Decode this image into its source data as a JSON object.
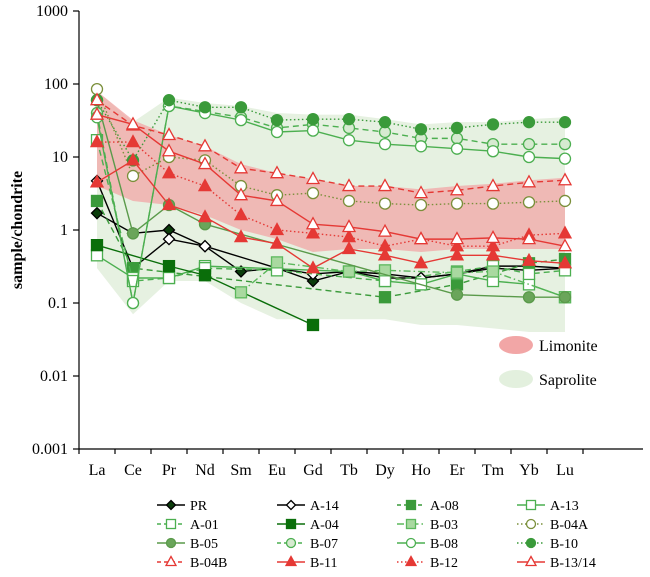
{
  "chart_data": {
    "type": "line",
    "title": "",
    "xlabel": "",
    "ylabel": "sample/chondrite",
    "yscale": "log",
    "ylim": [
      0.001,
      1000
    ],
    "yticks": [
      "0.001",
      "0.01",
      "0.1",
      "1",
      "10",
      "100",
      "1000"
    ],
    "ytick_values": [
      0.001,
      0.01,
      0.1,
      1,
      10,
      100,
      1000
    ],
    "categories": [
      "La",
      "Ce",
      "Pr",
      "Nd",
      "Sm",
      "Eu",
      "Gd",
      "Tb",
      "Dy",
      "Ho",
      "Er",
      "Tm",
      "Yb",
      "Lu"
    ],
    "grid": false,
    "legend_position": "bottom",
    "areas": [
      {
        "name": "Limonite",
        "color": "#f2a6a6",
        "upper": [
          80,
          32,
          20,
          14,
          8,
          6,
          5,
          4,
          4,
          3.6,
          4,
          4.3,
          4.8,
          5.2
        ],
        "lower": [
          4,
          2.5,
          2.2,
          1.6,
          1.0,
          0.75,
          0.5,
          0.55,
          0.55,
          0.5,
          0.55,
          0.55,
          0.55,
          0.55
        ]
      },
      {
        "name": "Saprolite",
        "color": "#e3f0de",
        "upper": [
          80,
          30,
          65,
          55,
          50,
          40,
          38,
          38,
          33,
          28,
          30,
          30,
          33,
          35
        ],
        "lower": [
          0.3,
          0.07,
          0.2,
          0.2,
          0.1,
          0.06,
          0.06,
          0.06,
          0.06,
          0.05,
          0.05,
          0.045,
          0.04,
          0.04
        ]
      }
    ],
    "series": [
      {
        "name": "PR",
        "color": "#000000",
        "dash": "solid",
        "marker": "diamond",
        "fill": "#0b3d0b",
        "values": [
          1.7,
          0.9,
          1.0,
          0.6,
          0.27,
          0.3,
          0.2,
          0.27,
          0.25,
          0.22,
          0.25,
          0.32,
          0.32,
          0.3
        ]
      },
      {
        "name": "A-14",
        "color": "#000000",
        "dash": "solid",
        "marker": "diamond",
        "fill": "none",
        "values": [
          4.7,
          0.3,
          0.75,
          0.6,
          null,
          0.3,
          0.25,
          0.27,
          0.22,
          0.22,
          0.25,
          0.3,
          0.28,
          0.3
        ]
      },
      {
        "name": "A-08",
        "color": "#3a9a3a",
        "dash": "dashed",
        "marker": "square",
        "fill": "#3a9a3a",
        "values": [
          2.5,
          0.3,
          null,
          null,
          null,
          null,
          null,
          null,
          0.12,
          null,
          0.18,
          null,
          0.35,
          0.4
        ]
      },
      {
        "name": "A-13",
        "color": "#4caf50",
        "dash": "solid",
        "marker": "square",
        "fill": "none",
        "values": [
          0.45,
          0.22,
          0.22,
          0.32,
          null,
          null,
          null,
          0.27,
          0.2,
          0.18,
          0.25,
          0.2,
          0.18,
          0.12
        ]
      },
      {
        "name": "A-01",
        "color": "#4caf50",
        "dash": "dashed",
        "marker": "square",
        "fill": "none",
        "values": [
          17,
          0.2,
          0.22,
          0.3,
          null,
          0.28,
          null,
          null,
          0.2,
          null,
          0.27,
          0.32,
          0.25,
          0.28
        ]
      },
      {
        "name": "A-04",
        "color": "#0a6e0a",
        "dash": "solid",
        "marker": "square",
        "fill": "#0a6e0a",
        "values": [
          0.62,
          null,
          0.32,
          0.24,
          null,
          null,
          0.05,
          null,
          null,
          null,
          null,
          null,
          null,
          null
        ]
      },
      {
        "name": "B-03",
        "color": "#5cb85c",
        "dash": "dashdot",
        "marker": "square",
        "fill": "#a9d9a0",
        "values": [
          null,
          null,
          null,
          null,
          0.14,
          0.36,
          null,
          0.27,
          0.28,
          null,
          0.26,
          0.27,
          null,
          0.12
        ]
      },
      {
        "name": "B-04A",
        "color": "#7a8f3a",
        "dash": "dotted",
        "marker": "circle",
        "fill": "none",
        "values": [
          85,
          5.5,
          10,
          9,
          4,
          3,
          3.2,
          2.5,
          2.3,
          2.2,
          2.3,
          2.3,
          2.4,
          2.5
        ]
      },
      {
        "name": "B-05",
        "color": "#5a9a4a",
        "dash": "solid",
        "marker": "circle",
        "fill": "#6aa55a",
        "values": [
          60,
          0.9,
          2.2,
          1.2,
          null,
          null,
          null,
          null,
          null,
          null,
          0.13,
          null,
          0.12,
          0.12
        ]
      },
      {
        "name": "B-07",
        "color": "#4caf50",
        "dash": "dashed",
        "marker": "circle",
        "fill": "#d6ead0",
        "values": [
          40,
          0.1,
          50,
          42,
          35,
          25,
          28,
          25,
          22,
          18,
          18,
          15,
          15,
          15
        ]
      },
      {
        "name": "B-08",
        "color": "#4caf50",
        "dash": "solid",
        "marker": "circle",
        "fill": "none",
        "values": [
          35,
          0.1,
          50,
          40,
          32,
          22,
          23,
          17,
          15,
          14,
          13,
          12,
          10,
          9.5
        ]
      },
      {
        "name": "B-10",
        "color": "#3a9a3a",
        "dash": "dotted",
        "marker": "circle",
        "fill": "#3a9a3a",
        "values": [
          60,
          9,
          60,
          48,
          48,
          32,
          33,
          33,
          30,
          24,
          25,
          28,
          30,
          30
        ]
      },
      {
        "name": "B-04B",
        "color": "#e53935",
        "dash": "dashed",
        "marker": "triangle",
        "fill": "none",
        "values": [
          60,
          27,
          20,
          14,
          7,
          6,
          5,
          4,
          4,
          3.2,
          3.5,
          4,
          4.5,
          4.8
        ]
      },
      {
        "name": "B-11",
        "color": "#e53935",
        "dash": "solid",
        "marker": "triangle",
        "fill": "#e53935",
        "values": [
          4.5,
          9,
          2.2,
          1.5,
          0.8,
          0.65,
          0.3,
          0.55,
          0.45,
          0.35,
          0.45,
          0.45,
          0.38,
          0.35
        ]
      },
      {
        "name": "B-12",
        "color": "#e53935",
        "dash": "dotted",
        "marker": "triangle",
        "fill": "#e53935",
        "values": [
          16,
          16,
          6,
          4,
          1.6,
          1.0,
          0.9,
          0.8,
          0.6,
          0.75,
          0.6,
          0.6,
          0.85,
          0.9
        ]
      },
      {
        "name": "B-13/14",
        "color": "#e53935",
        "dash": "solid",
        "marker": "triangle",
        "fill": "none",
        "values": [
          38,
          28,
          12,
          8,
          3,
          2.5,
          1.2,
          1.1,
          0.95,
          0.75,
          0.75,
          0.78,
          0.75,
          0.6
        ]
      }
    ],
    "area_legend": [
      "Limonite",
      "Saprolite"
    ]
  }
}
